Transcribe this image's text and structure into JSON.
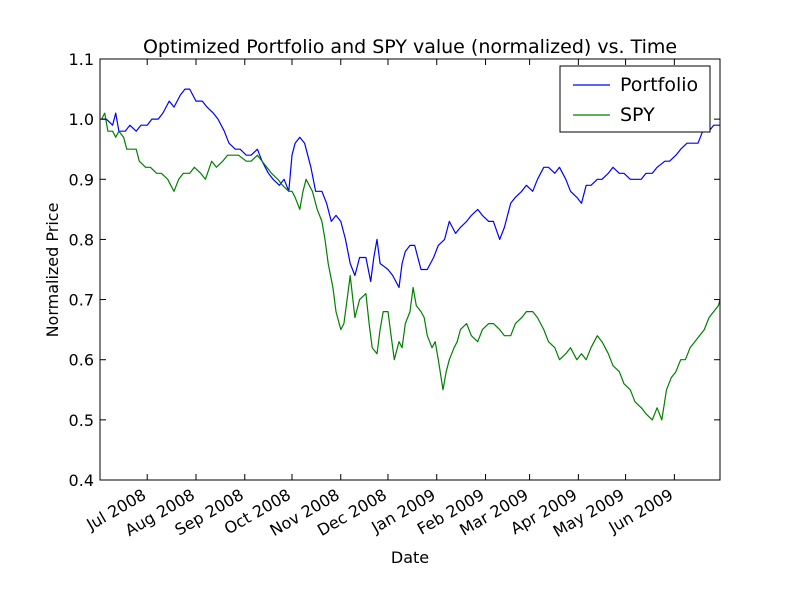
{
  "chart_data": {
    "type": "line",
    "title": "Optimized Portfolio and SPY value (normalized) vs. Time",
    "xlabel": "Date",
    "ylabel": "Normalized Price",
    "xlim": [
      "2008-06-01",
      "2009-06-30"
    ],
    "ylim": [
      0.4,
      1.1
    ],
    "yticks": [
      0.4,
      0.5,
      0.6,
      0.7,
      0.8,
      0.9,
      1.0,
      1.1
    ],
    "ytick_labels": [
      "0.4",
      "0.5",
      "0.6",
      "0.7",
      "0.8",
      "0.9",
      "1.0",
      "1.1"
    ],
    "xticks": [
      "2008-07-01",
      "2008-08-01",
      "2008-09-01",
      "2008-10-01",
      "2008-11-01",
      "2008-12-01",
      "2009-01-01",
      "2009-02-01",
      "2009-03-01",
      "2009-04-01",
      "2009-05-01",
      "2009-06-01"
    ],
    "xtick_labels": [
      "Jul 2008",
      "Aug 2008",
      "Sep 2008",
      "Oct 2008",
      "Nov 2008",
      "Dec 2008",
      "Jan 2009",
      "Feb 2009",
      "Mar 2009",
      "Apr 2009",
      "May 2009",
      "Jun 2009"
    ],
    "legend_position": "top-right",
    "grid": false,
    "series": [
      {
        "name": "Portfolio",
        "color": "#0000ff",
        "points": [
          [
            "2008-06-02",
            1.0
          ],
          [
            "2008-06-05",
            1.0
          ],
          [
            "2008-06-09",
            0.99
          ],
          [
            "2008-06-11",
            1.01
          ],
          [
            "2008-06-13",
            0.98
          ],
          [
            "2008-06-17",
            0.98
          ],
          [
            "2008-06-20",
            0.99
          ],
          [
            "2008-06-24",
            0.98
          ],
          [
            "2008-06-27",
            0.99
          ],
          [
            "2008-07-01",
            0.99
          ],
          [
            "2008-07-04",
            1.0
          ],
          [
            "2008-07-08",
            1.0
          ],
          [
            "2008-07-11",
            1.01
          ],
          [
            "2008-07-15",
            1.03
          ],
          [
            "2008-07-18",
            1.02
          ],
          [
            "2008-07-22",
            1.04
          ],
          [
            "2008-07-25",
            1.05
          ],
          [
            "2008-07-28",
            1.05
          ],
          [
            "2008-08-01",
            1.03
          ],
          [
            "2008-08-05",
            1.03
          ],
          [
            "2008-08-08",
            1.02
          ],
          [
            "2008-08-12",
            1.01
          ],
          [
            "2008-08-15",
            1.0
          ],
          [
            "2008-08-19",
            0.98
          ],
          [
            "2008-08-22",
            0.96
          ],
          [
            "2008-08-26",
            0.95
          ],
          [
            "2008-08-29",
            0.95
          ],
          [
            "2008-09-02",
            0.94
          ],
          [
            "2008-09-05",
            0.94
          ],
          [
            "2008-09-09",
            0.95
          ],
          [
            "2008-09-12",
            0.93
          ],
          [
            "2008-09-16",
            0.91
          ],
          [
            "2008-09-19",
            0.9
          ],
          [
            "2008-09-23",
            0.89
          ],
          [
            "2008-09-26",
            0.9
          ],
          [
            "2008-09-29",
            0.88
          ],
          [
            "2008-10-01",
            0.94
          ],
          [
            "2008-10-03",
            0.96
          ],
          [
            "2008-10-06",
            0.97
          ],
          [
            "2008-10-09",
            0.96
          ],
          [
            "2008-10-13",
            0.92
          ],
          [
            "2008-10-16",
            0.88
          ],
          [
            "2008-10-20",
            0.88
          ],
          [
            "2008-10-23",
            0.86
          ],
          [
            "2008-10-26",
            0.83
          ],
          [
            "2008-10-29",
            0.84
          ],
          [
            "2008-11-01",
            0.83
          ],
          [
            "2008-11-04",
            0.8
          ],
          [
            "2008-11-07",
            0.76
          ],
          [
            "2008-11-10",
            0.74
          ],
          [
            "2008-11-13",
            0.77
          ],
          [
            "2008-11-17",
            0.77
          ],
          [
            "2008-11-20",
            0.73
          ],
          [
            "2008-11-22",
            0.77
          ],
          [
            "2008-11-24",
            0.8
          ],
          [
            "2008-11-26",
            0.76
          ],
          [
            "2008-12-01",
            0.75
          ],
          [
            "2008-12-04",
            0.74
          ],
          [
            "2008-12-08",
            0.72
          ],
          [
            "2008-12-10",
            0.76
          ],
          [
            "2008-12-12",
            0.78
          ],
          [
            "2008-12-15",
            0.79
          ],
          [
            "2008-12-18",
            0.79
          ],
          [
            "2008-12-22",
            0.75
          ],
          [
            "2008-12-26",
            0.75
          ],
          [
            "2008-12-30",
            0.77
          ],
          [
            "2009-01-02",
            0.79
          ],
          [
            "2009-01-06",
            0.8
          ],
          [
            "2009-01-09",
            0.83
          ],
          [
            "2009-01-13",
            0.81
          ],
          [
            "2009-01-16",
            0.82
          ],
          [
            "2009-01-20",
            0.83
          ],
          [
            "2009-01-23",
            0.84
          ],
          [
            "2009-01-27",
            0.85
          ],
          [
            "2009-01-30",
            0.84
          ],
          [
            "2009-02-03",
            0.83
          ],
          [
            "2009-02-06",
            0.83
          ],
          [
            "2009-02-10",
            0.8
          ],
          [
            "2009-02-13",
            0.82
          ],
          [
            "2009-02-17",
            0.86
          ],
          [
            "2009-02-20",
            0.87
          ],
          [
            "2009-02-24",
            0.88
          ],
          [
            "2009-02-27",
            0.89
          ],
          [
            "2009-03-03",
            0.88
          ],
          [
            "2009-03-06",
            0.9
          ],
          [
            "2009-03-10",
            0.92
          ],
          [
            "2009-03-13",
            0.92
          ],
          [
            "2009-03-17",
            0.91
          ],
          [
            "2009-03-20",
            0.92
          ],
          [
            "2009-03-24",
            0.9
          ],
          [
            "2009-03-27",
            0.88
          ],
          [
            "2009-03-31",
            0.87
          ],
          [
            "2009-04-03",
            0.86
          ],
          [
            "2009-04-06",
            0.89
          ],
          [
            "2009-04-09",
            0.89
          ],
          [
            "2009-04-13",
            0.9
          ],
          [
            "2009-04-16",
            0.9
          ],
          [
            "2009-04-20",
            0.91
          ],
          [
            "2009-04-23",
            0.92
          ],
          [
            "2009-04-27",
            0.91
          ],
          [
            "2009-04-30",
            0.91
          ],
          [
            "2009-05-04",
            0.9
          ],
          [
            "2009-05-07",
            0.9
          ],
          [
            "2009-05-11",
            0.9
          ],
          [
            "2009-05-14",
            0.91
          ],
          [
            "2009-05-18",
            0.91
          ],
          [
            "2009-05-21",
            0.92
          ],
          [
            "2009-05-26",
            0.93
          ],
          [
            "2009-05-29",
            0.93
          ],
          [
            "2009-06-02",
            0.94
          ],
          [
            "2009-06-05",
            0.95
          ],
          [
            "2009-06-09",
            0.96
          ],
          [
            "2009-06-12",
            0.96
          ],
          [
            "2009-06-16",
            0.96
          ],
          [
            "2009-06-19",
            0.98
          ],
          [
            "2009-06-23",
            0.98
          ],
          [
            "2009-06-26",
            0.99
          ],
          [
            "2009-06-30",
            0.99
          ]
        ]
      },
      {
        "name": "SPY",
        "color": "#008000",
        "points": [
          [
            "2008-06-02",
            1.0
          ],
          [
            "2008-06-04",
            1.01
          ],
          [
            "2008-06-06",
            0.98
          ],
          [
            "2008-06-09",
            0.98
          ],
          [
            "2008-06-11",
            0.97
          ],
          [
            "2008-06-13",
            0.98
          ],
          [
            "2008-06-16",
            0.97
          ],
          [
            "2008-06-18",
            0.95
          ],
          [
            "2008-06-20",
            0.95
          ],
          [
            "2008-06-24",
            0.95
          ],
          [
            "2008-06-26",
            0.93
          ],
          [
            "2008-06-30",
            0.92
          ],
          [
            "2008-07-03",
            0.92
          ],
          [
            "2008-07-07",
            0.91
          ],
          [
            "2008-07-10",
            0.91
          ],
          [
            "2008-07-14",
            0.9
          ],
          [
            "2008-07-16",
            0.89
          ],
          [
            "2008-07-18",
            0.88
          ],
          [
            "2008-07-21",
            0.9
          ],
          [
            "2008-07-24",
            0.91
          ],
          [
            "2008-07-28",
            0.91
          ],
          [
            "2008-07-31",
            0.92
          ],
          [
            "2008-08-04",
            0.91
          ],
          [
            "2008-08-07",
            0.9
          ],
          [
            "2008-08-11",
            0.93
          ],
          [
            "2008-08-14",
            0.92
          ],
          [
            "2008-08-18",
            0.93
          ],
          [
            "2008-08-21",
            0.94
          ],
          [
            "2008-08-25",
            0.94
          ],
          [
            "2008-08-28",
            0.94
          ],
          [
            "2008-09-02",
            0.93
          ],
          [
            "2008-09-05",
            0.93
          ],
          [
            "2008-09-09",
            0.94
          ],
          [
            "2008-09-12",
            0.93
          ],
          [
            "2008-09-15",
            0.92
          ],
          [
            "2008-09-18",
            0.91
          ],
          [
            "2008-09-22",
            0.9
          ],
          [
            "2008-09-25",
            0.89
          ],
          [
            "2008-09-29",
            0.88
          ],
          [
            "2008-10-01",
            0.88
          ],
          [
            "2008-10-03",
            0.87
          ],
          [
            "2008-10-06",
            0.85
          ],
          [
            "2008-10-08",
            0.88
          ],
          [
            "2008-10-10",
            0.9
          ],
          [
            "2008-10-14",
            0.88
          ],
          [
            "2008-10-17",
            0.85
          ],
          [
            "2008-10-20",
            0.83
          ],
          [
            "2008-10-22",
            0.8
          ],
          [
            "2008-10-24",
            0.76
          ],
          [
            "2008-10-27",
            0.72
          ],
          [
            "2008-10-29",
            0.68
          ],
          [
            "2008-11-01",
            0.65
          ],
          [
            "2008-11-03",
            0.66
          ],
          [
            "2008-11-05",
            0.7
          ],
          [
            "2008-11-07",
            0.74
          ],
          [
            "2008-11-10",
            0.67
          ],
          [
            "2008-11-13",
            0.7
          ],
          [
            "2008-11-17",
            0.71
          ],
          [
            "2008-11-19",
            0.66
          ],
          [
            "2008-11-21",
            0.62
          ],
          [
            "2008-11-24",
            0.61
          ],
          [
            "2008-11-26",
            0.65
          ],
          [
            "2008-11-28",
            0.68
          ],
          [
            "2008-12-01",
            0.68
          ],
          [
            "2008-12-03",
            0.64
          ],
          [
            "2008-12-05",
            0.6
          ],
          [
            "2008-12-08",
            0.63
          ],
          [
            "2008-12-10",
            0.62
          ],
          [
            "2008-12-12",
            0.66
          ],
          [
            "2008-12-15",
            0.68
          ],
          [
            "2008-12-17",
            0.72
          ],
          [
            "2008-12-19",
            0.69
          ],
          [
            "2008-12-22",
            0.68
          ],
          [
            "2008-12-24",
            0.67
          ],
          [
            "2008-12-26",
            0.64
          ],
          [
            "2008-12-29",
            0.62
          ],
          [
            "2008-12-31",
            0.63
          ],
          [
            "2009-01-02",
            0.6
          ],
          [
            "2009-01-05",
            0.55
          ],
          [
            "2009-01-07",
            0.58
          ],
          [
            "2009-01-09",
            0.6
          ],
          [
            "2009-01-12",
            0.62
          ],
          [
            "2009-01-14",
            0.63
          ],
          [
            "2009-01-16",
            0.65
          ],
          [
            "2009-01-20",
            0.66
          ],
          [
            "2009-01-23",
            0.64
          ],
          [
            "2009-01-27",
            0.63
          ],
          [
            "2009-01-30",
            0.65
          ],
          [
            "2009-02-03",
            0.66
          ],
          [
            "2009-02-06",
            0.66
          ],
          [
            "2009-02-10",
            0.65
          ],
          [
            "2009-02-13",
            0.64
          ],
          [
            "2009-02-17",
            0.64
          ],
          [
            "2009-02-20",
            0.66
          ],
          [
            "2009-02-24",
            0.67
          ],
          [
            "2009-02-27",
            0.68
          ],
          [
            "2009-03-03",
            0.68
          ],
          [
            "2009-03-06",
            0.67
          ],
          [
            "2009-03-10",
            0.65
          ],
          [
            "2009-03-13",
            0.63
          ],
          [
            "2009-03-17",
            0.62
          ],
          [
            "2009-03-20",
            0.6
          ],
          [
            "2009-03-24",
            0.61
          ],
          [
            "2009-03-27",
            0.62
          ],
          [
            "2009-03-31",
            0.6
          ],
          [
            "2009-04-03",
            0.61
          ],
          [
            "2009-04-06",
            0.6
          ],
          [
            "2009-04-09",
            0.62
          ],
          [
            "2009-04-13",
            0.64
          ],
          [
            "2009-04-16",
            0.63
          ],
          [
            "2009-04-20",
            0.61
          ],
          [
            "2009-04-23",
            0.59
          ],
          [
            "2009-04-27",
            0.58
          ],
          [
            "2009-04-30",
            0.56
          ],
          [
            "2009-05-04",
            0.55
          ],
          [
            "2009-05-07",
            0.53
          ],
          [
            "2009-05-11",
            0.52
          ],
          [
            "2009-05-14",
            0.51
          ],
          [
            "2009-05-18",
            0.5
          ],
          [
            "2009-05-21",
            0.52
          ],
          [
            "2009-05-24",
            0.5
          ],
          [
            "2009-05-27",
            0.55
          ],
          [
            "2009-05-30",
            0.57
          ],
          [
            "2009-06-02",
            0.58
          ],
          [
            "2009-06-05",
            0.6
          ],
          [
            "2009-06-08",
            0.6
          ],
          [
            "2009-06-11",
            0.62
          ],
          [
            "2009-06-14",
            0.63
          ],
          [
            "2009-06-17",
            0.64
          ],
          [
            "2009-06-20",
            0.65
          ],
          [
            "2009-06-23",
            0.67
          ],
          [
            "2009-06-26",
            0.68
          ],
          [
            "2009-06-29",
            0.69
          ],
          [
            "2009-06-30",
            0.7
          ]
        ]
      }
    ]
  }
}
